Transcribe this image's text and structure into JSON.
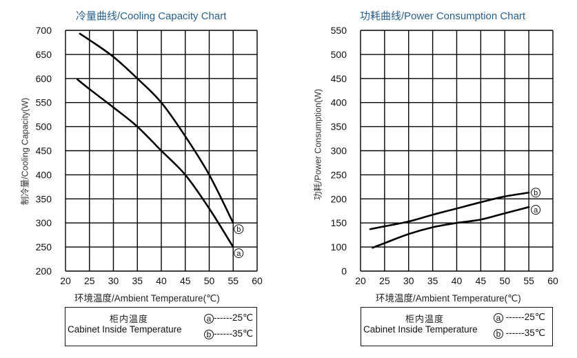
{
  "charts": {
    "cooling": {
      "title": "冷量曲线/Cooling Capacity Chart",
      "ylabel": "制冷量/Cooling  Capacity(W)",
      "xlabel": "环境温度/Ambient Temperature(℃)",
      "legend": {
        "label_cn": "柜内温度",
        "label_en": "Cabinet Inside Temperature",
        "entries": [
          {
            "marker": "a",
            "text": "------25℃"
          },
          {
            "marker": "b",
            "text": "------35℃"
          }
        ]
      }
    },
    "power": {
      "title": "功耗曲线/Power Consumption Chart",
      "ylabel": "功耗/Power Consumption(W)",
      "xlabel": "环境温度/Ambient Temperature(℃)",
      "legend": {
        "label_cn": "柜内温度",
        "label_en": "Cabinet Inside Temperature",
        "entries": [
          {
            "marker": "a",
            "text": " ------25℃"
          },
          {
            "marker": "b",
            "text": " ------35℃"
          }
        ]
      }
    }
  },
  "chart_data": [
    {
      "type": "line",
      "title": "冷量曲线/Cooling Capacity Chart",
      "xlabel": "环境温度/Ambient Temperature(℃)",
      "ylabel": "制冷量/Cooling  Capacity(W)",
      "xlim": [
        20,
        60
      ],
      "ylim": [
        200,
        700
      ],
      "xticks": [
        20,
        25,
        30,
        35,
        40,
        45,
        50,
        55,
        60
      ],
      "yticks": [
        200,
        250,
        300,
        350,
        400,
        450,
        500,
        550,
        600,
        650,
        700
      ],
      "grid": true,
      "legend_position": "below",
      "series": [
        {
          "name": "a (Cabinet Inside 25℃)",
          "label": "ⓐ",
          "x": [
            22.5,
            25,
            30,
            35,
            40,
            45,
            50,
            55
          ],
          "y": [
            598,
            578,
            540,
            500,
            450,
            400,
            330,
            250
          ]
        },
        {
          "name": "b (Cabinet Inside 35℃)",
          "label": "ⓑ",
          "x": [
            23,
            25,
            30,
            35,
            40,
            45,
            50,
            55
          ],
          "y": [
            693,
            680,
            645,
            600,
            550,
            480,
            400,
            300
          ]
        }
      ]
    },
    {
      "type": "line",
      "title": "功耗曲线/Power Consumption Chart",
      "xlabel": "环境温度/Ambient Temperature(℃)",
      "ylabel": "功耗/Power Consumption(W)",
      "xlim": [
        20,
        60
      ],
      "ylim": [
        0,
        550
      ],
      "xticks": [
        20,
        25,
        30,
        35,
        40,
        45,
        50,
        55,
        60
      ],
      "yticks": [
        0,
        100,
        150,
        200,
        250,
        300,
        350,
        400,
        450,
        500,
        550
      ],
      "grid": true,
      "legend_position": "below",
      "series": [
        {
          "name": "a (Cabinet Inside 25℃)",
          "label": "ⓐ",
          "x": [
            22.5,
            25,
            30,
            35,
            40,
            45,
            50,
            55
          ],
          "y": [
            97,
            108,
            127,
            141,
            150,
            157,
            170,
            183
          ]
        },
        {
          "name": "b (Cabinet Inside 35℃)",
          "label": "ⓑ",
          "x": [
            22,
            25,
            30,
            35,
            40,
            45,
            50,
            55
          ],
          "y": [
            137,
            143,
            153,
            167,
            180,
            193,
            205,
            213
          ]
        }
      ]
    }
  ]
}
